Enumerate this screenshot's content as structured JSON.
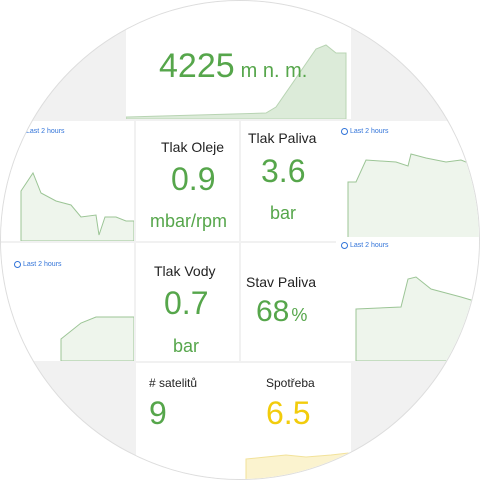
{
  "header_panel": {
    "value": "4225",
    "unit": "m n. m."
  },
  "time_ranges": [
    "Last 2 hours",
    "Last 2 hours",
    "Last 2 hours",
    "Last 2 hours"
  ],
  "stats": [
    {
      "label": "Tlak Oleje",
      "value": "0.9",
      "unit": "mbar/rpm"
    },
    {
      "label": "Tlak Paliva",
      "value": "3.6",
      "unit": "bar"
    },
    {
      "label": "Tlak Vody",
      "value": "0.7",
      "unit": "bar"
    },
    {
      "label": "Stav Paliva",
      "value": "68",
      "unit": "%"
    },
    {
      "label": "# satelitů",
      "value": "9"
    },
    {
      "label": "Spotřeba",
      "value": "6.5"
    }
  ]
}
